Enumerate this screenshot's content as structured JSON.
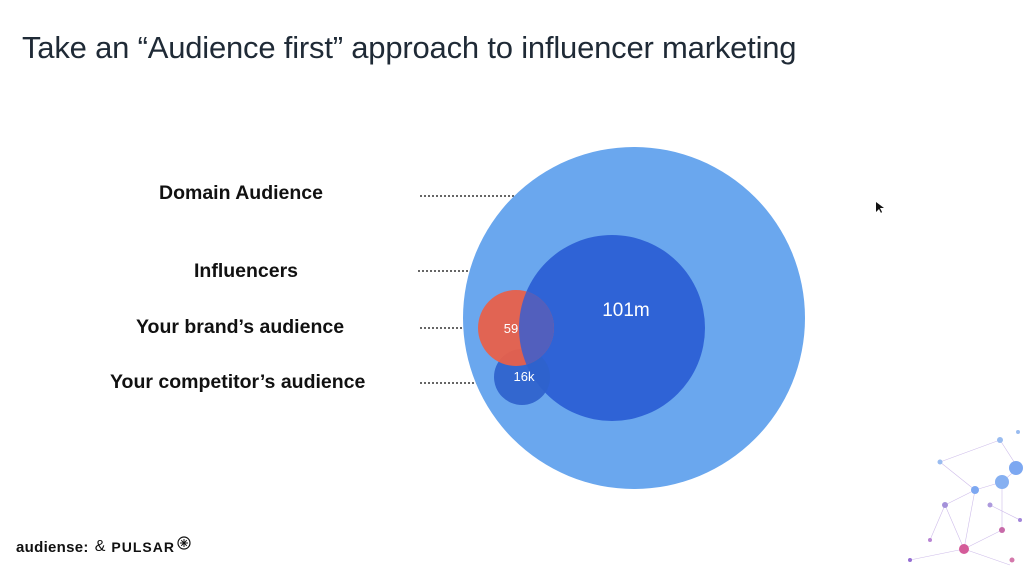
{
  "title": "Take an “Audience first” approach to influencer marketing",
  "diagram": {
    "labels": {
      "domain": "Domain Audience",
      "influencers": "Influencers",
      "brand": "Your brand’s audience",
      "competitor": "Your competitor’s audience"
    },
    "values": {
      "influencers": "101m",
      "brand": "59",
      "competitor": "16k"
    },
    "colors": {
      "domain": "#6aa7ee",
      "influencers": "#2f63d6",
      "brand": "#e8604a",
      "competitor": "#2f62cc"
    }
  },
  "footer": {
    "logo_audiense": "audiense:",
    "amp": "&",
    "logo_pulsar": "PULSAR"
  }
}
